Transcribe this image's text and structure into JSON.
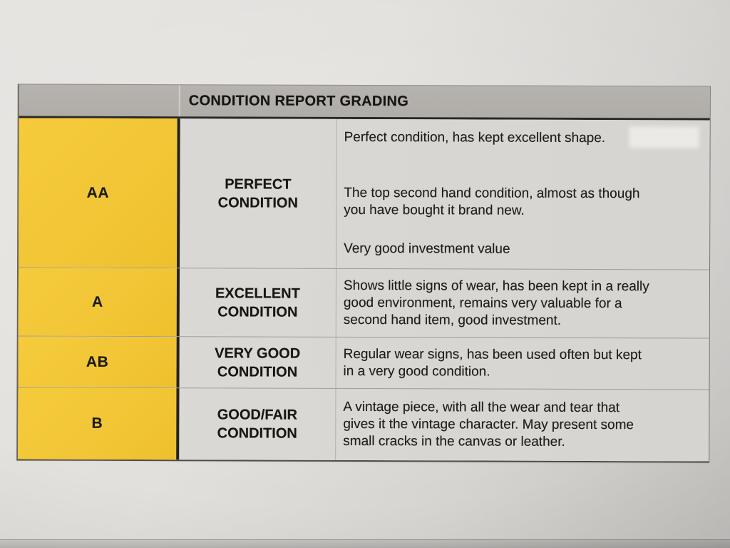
{
  "table": {
    "title": "CONDITION REPORT GRADING",
    "rows": [
      {
        "grade": "AA",
        "condition": "PERFECT\nCONDITION",
        "paragraphs": [
          "Perfect condition, has kept excellent shape.",
          "The top second hand condition, almost as though\nyou have bought it brand new.",
          "Very good investment value"
        ]
      },
      {
        "grade": "A",
        "condition": "EXCELLENT\nCONDITION",
        "paragraphs": [
          "Shows little signs of wear, has been kept in a really\ngood environment, remains very valuable for a\nsecond hand item, good investment."
        ]
      },
      {
        "grade": "AB",
        "condition": "VERY GOOD\nCONDITION",
        "paragraphs": [
          "Regular wear signs, has been used often but kept\nin a very good condition."
        ]
      },
      {
        "grade": "B",
        "condition": "GOOD/FAIR\nCONDITION",
        "paragraphs": [
          "A vintage piece, with all the wear and tear that\ngives it the vintage character. May present some\nsmall cracks in the canvas or leather."
        ]
      }
    ],
    "colors": {
      "grade_column": "#f2c636",
      "header": "#b6b3ae",
      "cell": "#dcdad6",
      "text": "#1e1d1b"
    }
  }
}
